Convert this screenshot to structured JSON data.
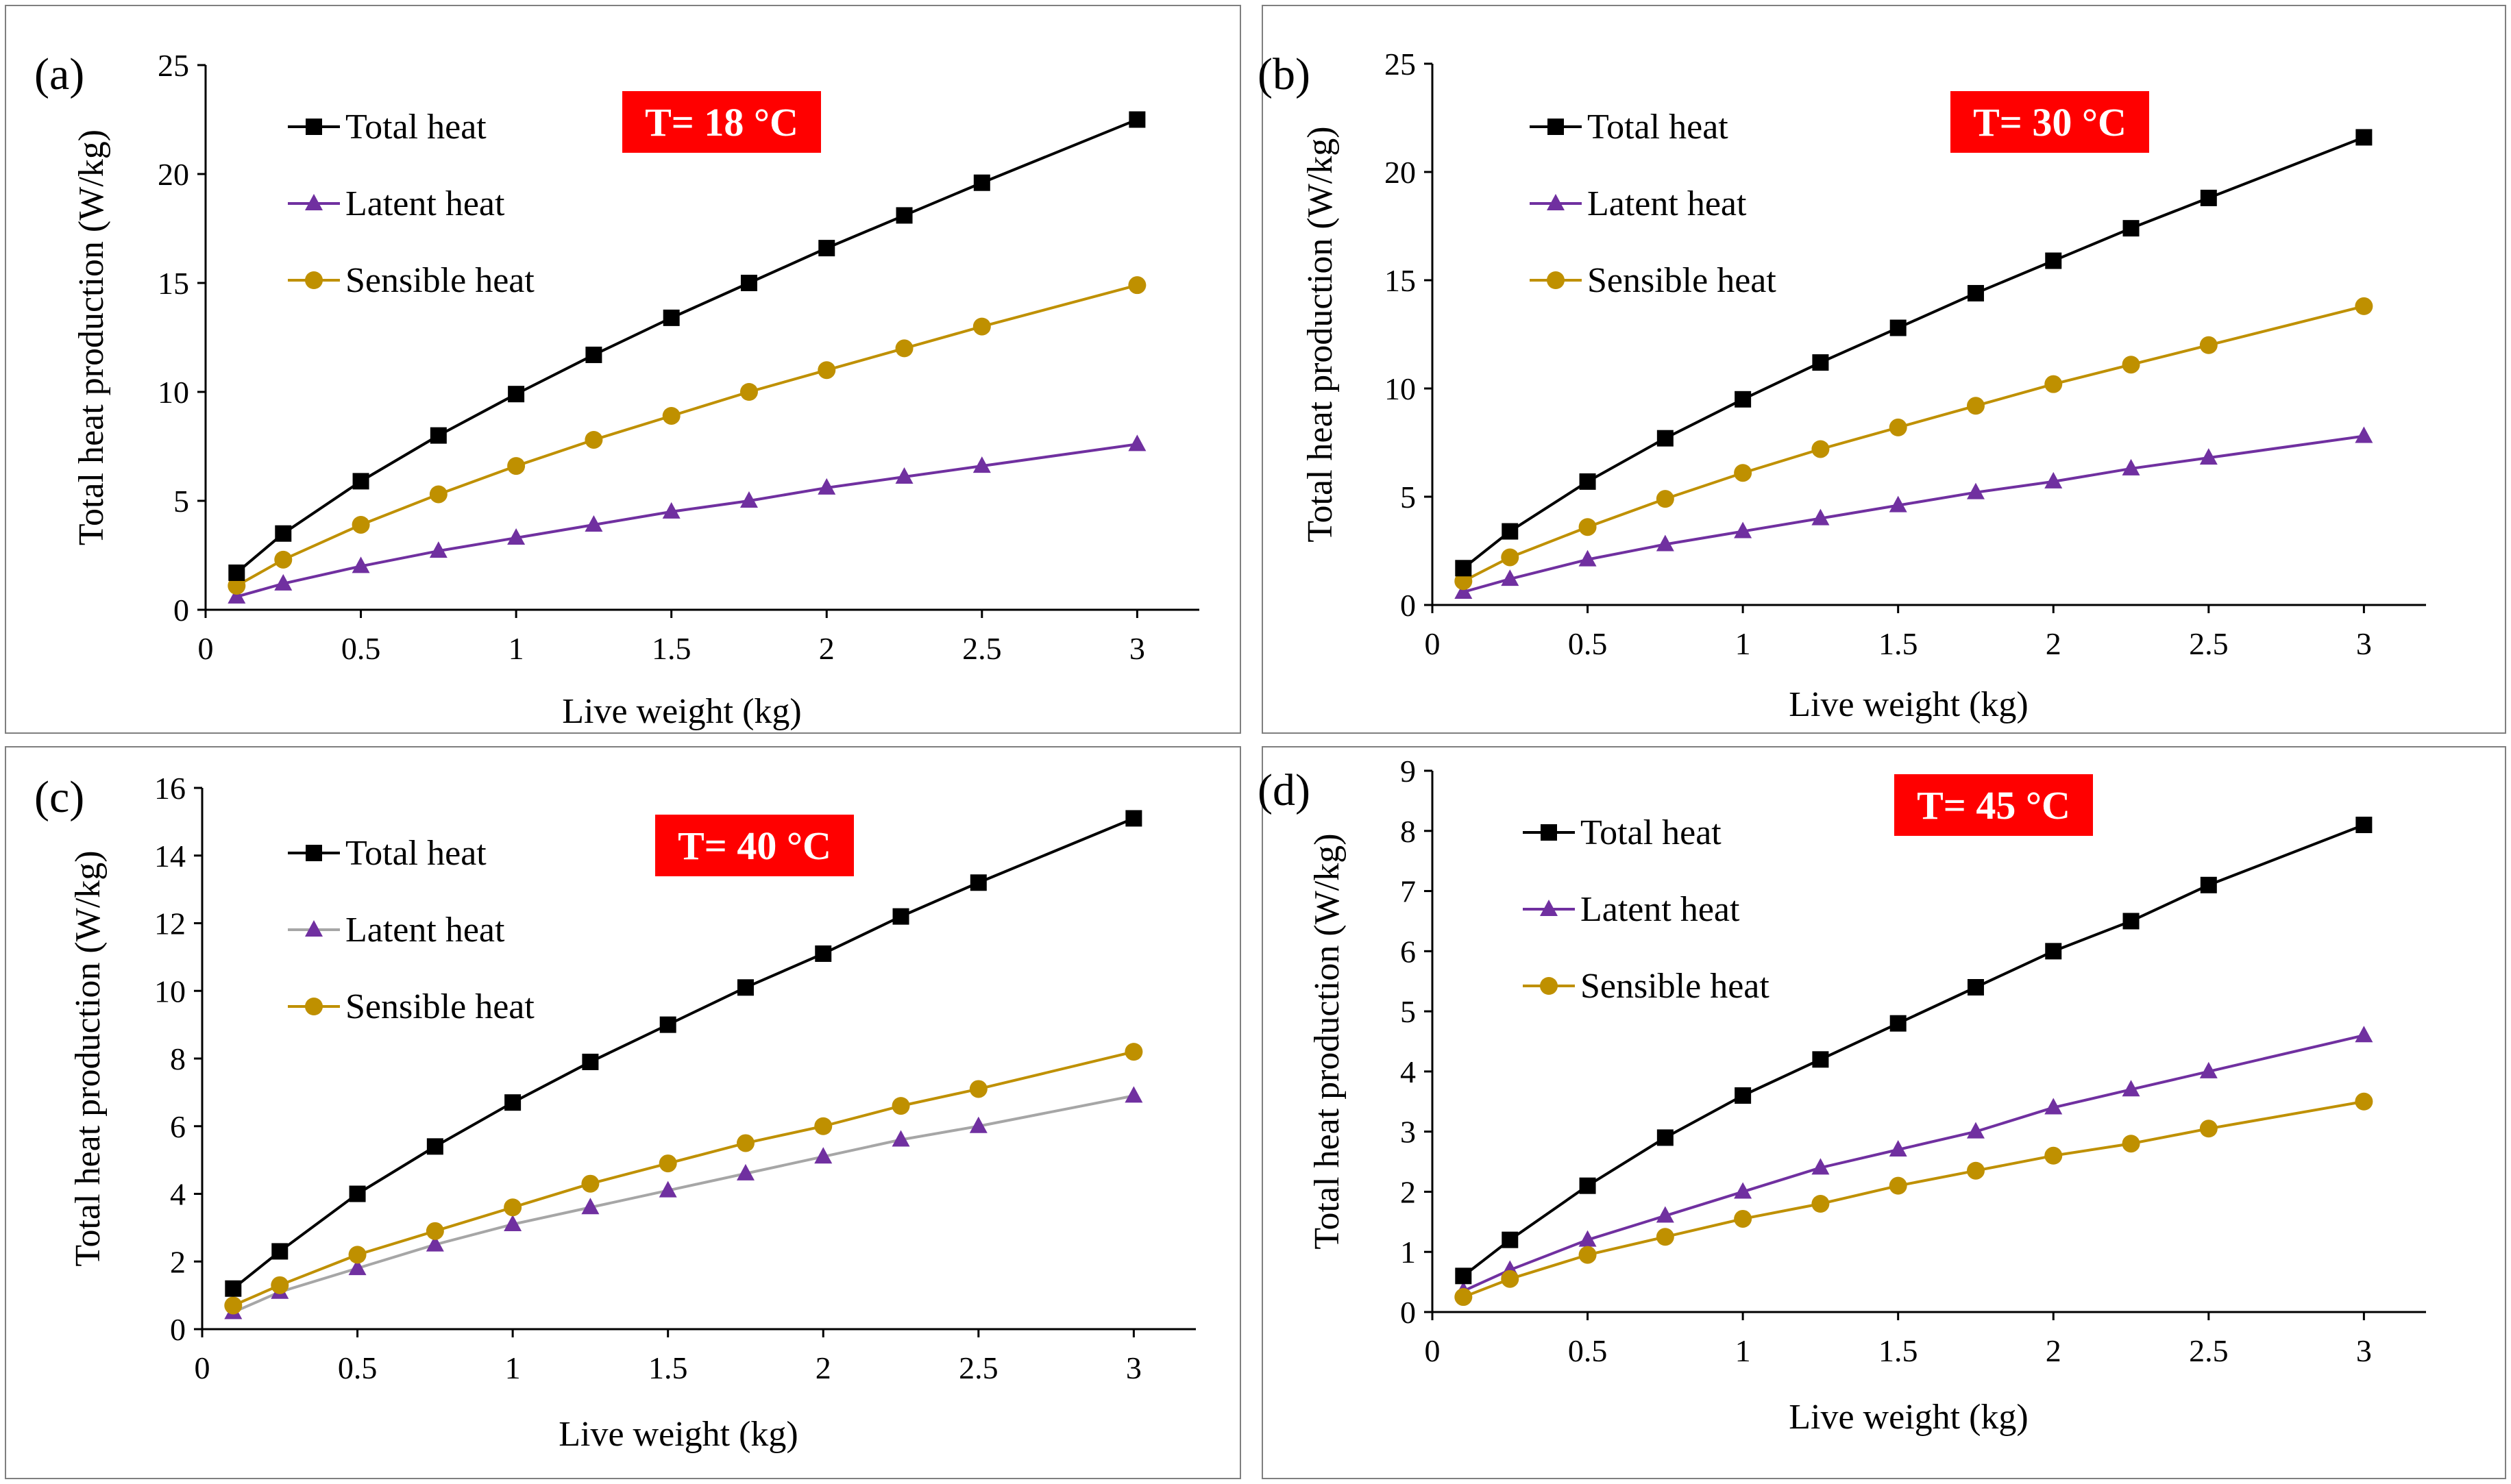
{
  "chart_data": [
    {
      "type": "line",
      "panel_label": "(a)",
      "annotation": "T= 18 °C",
      "xlabel": "Live weight (kg)",
      "ylabel": "Total heat production (W/kg)",
      "xlim": [
        0,
        3.2
      ],
      "ylim": [
        0,
        25
      ],
      "xticks": [
        "0",
        "0.5",
        "1",
        "1.5",
        "2",
        "2.5",
        "3"
      ],
      "yticks": [
        "0",
        "5",
        "10",
        "15",
        "20",
        "25"
      ],
      "x": [
        0.1,
        0.25,
        0.5,
        0.75,
        1,
        1.25,
        1.5,
        1.75,
        2,
        2.25,
        2.5,
        3
      ],
      "series": [
        {
          "name": "Total heat",
          "marker": "square",
          "line_color": "#000000",
          "marker_color": "#000000",
          "values": [
            1.7,
            3.5,
            5.9,
            8.0,
            9.9,
            11.7,
            13.4,
            15.0,
            16.6,
            18.1,
            19.6,
            22.5
          ]
        },
        {
          "name": "Latent heat",
          "marker": "triangle",
          "line_color": "#7030a0",
          "marker_color": "#7030a0",
          "values": [
            0.6,
            1.2,
            2.0,
            2.7,
            3.3,
            3.9,
            4.5,
            5.0,
            5.6,
            6.1,
            6.6,
            7.6
          ]
        },
        {
          "name": "Sensible heat",
          "marker": "circle",
          "line_color": "#bf9000",
          "marker_color": "#bf9000",
          "values": [
            1.1,
            2.3,
            3.9,
            5.3,
            6.6,
            7.8,
            8.9,
            10.0,
            11.0,
            12.0,
            13.0,
            14.9
          ]
        }
      ]
    },
    {
      "type": "line",
      "panel_label": "(b)",
      "annotation": "T= 30 °C",
      "xlabel": "Live weight (kg)",
      "ylabel": "Total heat production (W/kg)",
      "xlim": [
        0,
        3.2
      ],
      "ylim": [
        0,
        25
      ],
      "xticks": [
        "0",
        "0.5",
        "1",
        "1.5",
        "2",
        "2.5",
        "3"
      ],
      "yticks": [
        "0",
        "5",
        "10",
        "15",
        "20",
        "25"
      ],
      "x": [
        0.1,
        0.25,
        0.5,
        0.75,
        1,
        1.25,
        1.5,
        1.75,
        2,
        2.25,
        2.5,
        3
      ],
      "series": [
        {
          "name": "Total heat",
          "marker": "square",
          "line_color": "#000000",
          "marker_color": "#000000",
          "values": [
            1.7,
            3.4,
            5.7,
            7.7,
            9.5,
            11.2,
            12.8,
            14.4,
            15.9,
            17.4,
            18.8,
            21.6
          ]
        },
        {
          "name": "Latent heat",
          "marker": "triangle",
          "line_color": "#7030a0",
          "marker_color": "#7030a0",
          "values": [
            0.6,
            1.2,
            2.1,
            2.8,
            3.4,
            4.0,
            4.6,
            5.2,
            5.7,
            6.3,
            6.8,
            7.8
          ]
        },
        {
          "name": "Sensible heat",
          "marker": "circle",
          "line_color": "#bf9000",
          "marker_color": "#bf9000",
          "values": [
            1.1,
            2.2,
            3.6,
            4.9,
            6.1,
            7.2,
            8.2,
            9.2,
            10.2,
            11.1,
            12.0,
            13.8
          ]
        }
      ]
    },
    {
      "type": "line",
      "panel_label": "(c)",
      "annotation": "T= 40 °C",
      "xlabel": "Live weight (kg)",
      "ylabel": "Total heat production (W/kg)",
      "xlim": [
        0,
        3.2
      ],
      "ylim": [
        0,
        16
      ],
      "xticks": [
        "0",
        "0.5",
        "1",
        "1.5",
        "2",
        "2.5",
        "3"
      ],
      "yticks": [
        "0",
        "2",
        "4",
        "6",
        "8",
        "10",
        "12",
        "14",
        "16"
      ],
      "x": [
        0.1,
        0.25,
        0.5,
        0.75,
        1,
        1.25,
        1.5,
        1.75,
        2,
        2.25,
        2.5,
        3
      ],
      "series": [
        {
          "name": "Total heat",
          "marker": "square",
          "line_color": "#000000",
          "marker_color": "#000000",
          "values": [
            1.2,
            2.3,
            4.0,
            5.4,
            6.7,
            7.9,
            9.0,
            10.1,
            11.1,
            12.2,
            13.2,
            15.1
          ]
        },
        {
          "name": "Latent heat",
          "marker": "triangle",
          "line_color": "#a6a6a6",
          "marker_color": "#7030a0",
          "values": [
            0.5,
            1.1,
            1.8,
            2.5,
            3.1,
            3.6,
            4.1,
            4.6,
            5.1,
            5.6,
            6.0,
            6.9
          ]
        },
        {
          "name": "Sensible heat",
          "marker": "circle",
          "line_color": "#bf9000",
          "marker_color": "#bf9000",
          "values": [
            0.7,
            1.3,
            2.2,
            2.9,
            3.6,
            4.3,
            4.9,
            5.5,
            6.0,
            6.6,
            7.1,
            8.2
          ]
        }
      ]
    },
    {
      "type": "line",
      "panel_label": "(d)",
      "annotation": "T= 45 °C",
      "xlabel": "Live weight (kg)",
      "ylabel": "Total heat production (W/kg)",
      "xlim": [
        0,
        3.2
      ],
      "ylim": [
        0,
        9
      ],
      "xticks": [
        "0",
        "0.5",
        "1",
        "1.5",
        "2",
        "2.5",
        "3"
      ],
      "yticks": [
        "0",
        "1",
        "2",
        "3",
        "4",
        "5",
        "6",
        "7",
        "8",
        "9"
      ],
      "x": [
        0.1,
        0.25,
        0.5,
        0.75,
        1,
        1.25,
        1.5,
        1.75,
        2,
        2.25,
        2.5,
        3
      ],
      "series": [
        {
          "name": "Total heat",
          "marker": "square",
          "line_color": "#000000",
          "marker_color": "#000000",
          "values": [
            0.6,
            1.2,
            2.1,
            2.9,
            3.6,
            4.2,
            4.8,
            5.4,
            6.0,
            6.5,
            7.1,
            8.1
          ]
        },
        {
          "name": "Latent heat",
          "marker": "triangle",
          "line_color": "#7030a0",
          "marker_color": "#7030a0",
          "values": [
            0.35,
            0.7,
            1.2,
            1.6,
            2.0,
            2.4,
            2.7,
            3.0,
            3.4,
            3.7,
            4.0,
            4.6
          ]
        },
        {
          "name": "Sensible heat",
          "marker": "circle",
          "line_color": "#bf9000",
          "marker_color": "#bf9000",
          "values": [
            0.25,
            0.55,
            0.95,
            1.25,
            1.55,
            1.8,
            2.1,
            2.35,
            2.6,
            2.8,
            3.05,
            3.5
          ]
        }
      ]
    }
  ],
  "style": {
    "annotation_bg": "#ff0000",
    "axis_color": "#000000",
    "frame_color": "#7f7f7f"
  }
}
